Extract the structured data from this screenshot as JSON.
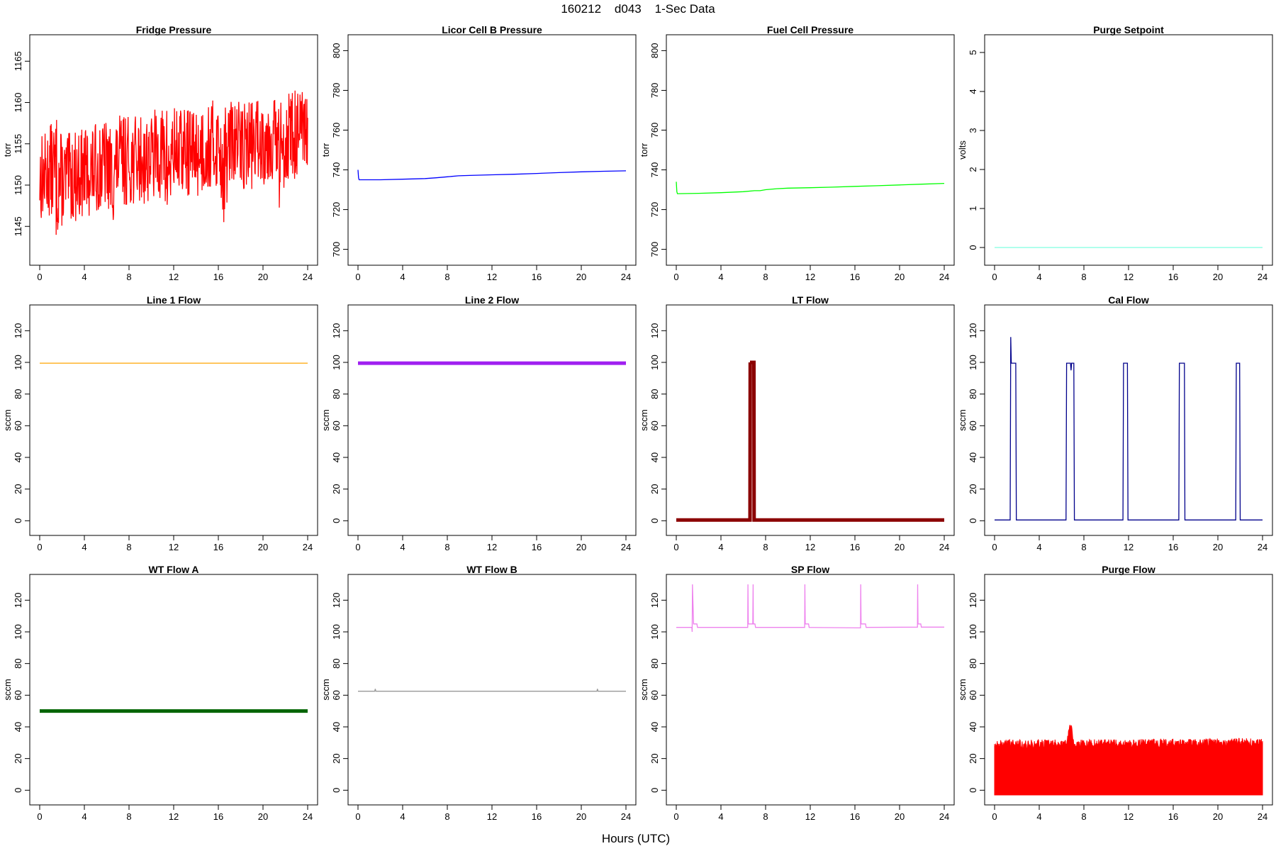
{
  "figure": {
    "title": "160212    d043    1-Sec Data",
    "xlabel": "Hours (UTC)"
  },
  "chart_data": [
    {
      "type": "line",
      "title": "Fridge Pressure",
      "ylabel": "torr",
      "color": "#ff0000",
      "style": "noise",
      "xlim": [
        0,
        24
      ],
      "ylim": [
        1141.5,
        1167
      ],
      "xticks": [
        0,
        4,
        8,
        12,
        16,
        20,
        24
      ],
      "yticks": [
        1145,
        1150,
        1155,
        1160,
        1165
      ],
      "series": [
        {
          "x": [
            0,
            0.5,
            1,
            1.5,
            2,
            3,
            4,
            5,
            6,
            6.5,
            7,
            8,
            9,
            10,
            11,
            11.5,
            12,
            13,
            14,
            15,
            16,
            16.5,
            17,
            18,
            19,
            20,
            21,
            21.5,
            22,
            23,
            24
          ],
          "mid": [
            1151,
            1151,
            1152,
            1151,
            1150.5,
            1151,
            1151.5,
            1152,
            1152.5,
            1151,
            1153,
            1153,
            1153,
            1153.5,
            1154,
            1152,
            1154,
            1154,
            1154,
            1154.5,
            1155,
            1152,
            1155,
            1155,
            1155,
            1155.5,
            1156,
            1153,
            1156,
            1156,
            1156
          ],
          "band": [
            5.5,
            5.5,
            5.5,
            8,
            5.5,
            5.5,
            5.5,
            5.5,
            5.5,
            6,
            5.5,
            5.5,
            5.5,
            5.5,
            5.5,
            8,
            5.5,
            5.5,
            5.5,
            5.5,
            5.5,
            7,
            5.5,
            5.5,
            5.5,
            5.5,
            5.5,
            7,
            5.5,
            5.5,
            5.5
          ]
        }
      ]
    },
    {
      "type": "line",
      "title": "Licor Cell B Pressure",
      "ylabel": "torr",
      "color": "#0000ff",
      "style": "line",
      "xlim": [
        0,
        24
      ],
      "ylim": [
        697,
        803
      ],
      "xticks": [
        0,
        4,
        8,
        12,
        16,
        20,
        24
      ],
      "yticks": [
        700,
        720,
        740,
        760,
        780,
        800
      ],
      "series": [
        {
          "x": [
            0,
            0.05,
            0.1,
            2,
            4,
            6,
            7,
            8,
            9,
            10,
            12,
            14,
            16,
            18,
            20,
            22,
            24
          ],
          "y": [
            740,
            736,
            735,
            735,
            735.3,
            735.6,
            736,
            736.5,
            737,
            737.2,
            737.5,
            737.8,
            738.2,
            738.6,
            739,
            739.3,
            739.5
          ]
        }
      ]
    },
    {
      "type": "line",
      "title": "Fuel Cell Pressure",
      "ylabel": "torr",
      "color": "#00ff00",
      "style": "line",
      "xlim": [
        0,
        24
      ],
      "ylim": [
        697,
        803
      ],
      "xticks": [
        0,
        4,
        8,
        12,
        16,
        20,
        24
      ],
      "yticks": [
        700,
        720,
        740,
        760,
        780,
        800
      ],
      "series": [
        {
          "x": [
            0,
            0.05,
            0.1,
            2,
            4,
            6,
            7,
            7.5,
            8,
            9,
            10,
            12,
            14,
            16,
            18,
            20,
            22,
            24
          ],
          "y": [
            734,
            729,
            728,
            728.2,
            728.5,
            729,
            729.5,
            729.5,
            730,
            730.5,
            730.8,
            731,
            731.3,
            731.7,
            732,
            732.4,
            732.8,
            733.2
          ]
        }
      ]
    },
    {
      "type": "line",
      "title": "Purge Setpoint",
      "ylabel": "volts",
      "color": "#7fffe0",
      "style": "line",
      "xlim": [
        0,
        24
      ],
      "ylim": [
        -0.2,
        5.2
      ],
      "xticks": [
        0,
        4,
        8,
        12,
        16,
        20,
        24
      ],
      "yticks": [
        0,
        1,
        2,
        3,
        4,
        5
      ],
      "series": [
        {
          "x": [
            0,
            24
          ],
          "y": [
            0,
            0
          ]
        }
      ]
    },
    {
      "type": "line",
      "title": "Line 1 Flow",
      "ylabel": "sccm",
      "color": "#ffa500",
      "style": "line",
      "xlim": [
        0,
        24
      ],
      "ylim": [
        -3,
        130
      ],
      "xticks": [
        0,
        4,
        8,
        12,
        16,
        20,
        24
      ],
      "yticks": [
        0,
        20,
        40,
        60,
        80,
        100,
        120
      ],
      "series": [
        {
          "x": [
            0,
            24
          ],
          "y": [
            99.5,
            99.5
          ]
        }
      ]
    },
    {
      "type": "line",
      "title": "Line 2 Flow",
      "ylabel": "sccm",
      "color": "#a020f0",
      "style": "thick",
      "xlim": [
        0,
        24
      ],
      "ylim": [
        -3,
        130
      ],
      "xticks": [
        0,
        4,
        8,
        12,
        16,
        20,
        24
      ],
      "yticks": [
        0,
        20,
        40,
        60,
        80,
        100,
        120
      ],
      "series": [
        {
          "x": [
            0,
            24
          ],
          "y": [
            99.5,
            99.5
          ]
        }
      ]
    },
    {
      "type": "line",
      "title": "LT Flow",
      "ylabel": "sccm",
      "color": "#8b0000",
      "style": "thick",
      "xlim": [
        0,
        24
      ],
      "ylim": [
        -3,
        130
      ],
      "xticks": [
        0,
        4,
        8,
        12,
        16,
        20,
        24
      ],
      "yticks": [
        0,
        20,
        40,
        60,
        80,
        100,
        120
      ],
      "series": [
        {
          "x": [
            0,
            6.6,
            6.62,
            6.6,
            6.95,
            6.97,
            24
          ],
          "y": [
            0.5,
            0.5,
            100,
            100,
            100,
            0.5,
            0.5
          ]
        }
      ]
    },
    {
      "type": "line",
      "title": "Cal Flow",
      "ylabel": "sccm",
      "color": "#00008b",
      "style": "line",
      "xlim": [
        0,
        24
      ],
      "ylim": [
        -3,
        130
      ],
      "xticks": [
        0,
        4,
        8,
        12,
        16,
        20,
        24
      ],
      "yticks": [
        0,
        20,
        40,
        60,
        80,
        100,
        120
      ],
      "series": [
        {
          "x": [
            0,
            1.4,
            1.45,
            1.5,
            1.55,
            1.9,
            1.95,
            6.4,
            6.45,
            6.8,
            6.85,
            6.9,
            7.1,
            7.15,
            11.5,
            11.55,
            11.9,
            11.95,
            16.5,
            16.55,
            17,
            17.05,
            21.6,
            21.65,
            21.95,
            22,
            24
          ],
          "y": [
            0.5,
            0.5,
            116,
            99.5,
            99.5,
            99.5,
            0.5,
            0.5,
            99.5,
            99.5,
            95,
            99.5,
            99.5,
            0.5,
            0.5,
            99.5,
            99.5,
            0.5,
            0.5,
            99.5,
            99.5,
            0.5,
            0.5,
            99.5,
            99.5,
            0.5,
            0.5
          ]
        }
      ]
    },
    {
      "type": "line",
      "title": "WT Flow A",
      "ylabel": "sccm",
      "color": "#006400",
      "style": "thick",
      "xlim": [
        0,
        24
      ],
      "ylim": [
        -3,
        130
      ],
      "xticks": [
        0,
        4,
        8,
        12,
        16,
        20,
        24
      ],
      "yticks": [
        0,
        20,
        40,
        60,
        80,
        100,
        120
      ],
      "series": [
        {
          "x": [
            0,
            24
          ],
          "y": [
            50,
            50
          ]
        }
      ]
    },
    {
      "type": "line",
      "title": "WT Flow B",
      "ylabel": "sccm",
      "color": "#999999",
      "style": "line",
      "xlim": [
        0,
        24
      ],
      "ylim": [
        -3,
        130
      ],
      "xticks": [
        0,
        4,
        8,
        12,
        16,
        20,
        24
      ],
      "yticks": [
        0,
        20,
        40,
        60,
        80,
        100,
        120
      ],
      "series": [
        {
          "x": [
            0,
            1.5,
            1.55,
            1.6,
            12,
            21.4,
            21.45,
            21.5,
            24
          ],
          "y": [
            62.5,
            62.5,
            64,
            62.5,
            62.5,
            62.5,
            64,
            62.5,
            62.5
          ]
        }
      ]
    },
    {
      "type": "line",
      "title": "SP Flow",
      "ylabel": "sccm",
      "color": "#ee82ee",
      "style": "line",
      "xlim": [
        0,
        24
      ],
      "ylim": [
        -3,
        130
      ],
      "xticks": [
        0,
        4,
        8,
        12,
        16,
        20,
        24
      ],
      "yticks": [
        0,
        20,
        40,
        60,
        80,
        100,
        120
      ],
      "series": [
        {
          "x": [
            0,
            1.4,
            1.42,
            1.45,
            1.55,
            1.6,
            1.85,
            1.9,
            6.4,
            6.42,
            6.45,
            6.85,
            6.88,
            6.9,
            7.05,
            7.1,
            11.5,
            11.52,
            11.55,
            11.85,
            11.9,
            16.5,
            16.52,
            16.55,
            16.95,
            17,
            21.6,
            21.62,
            21.65,
            21.9,
            21.95,
            24
          ],
          "y": [
            102.8,
            102.8,
            100,
            130,
            105,
            105,
            105,
            102.8,
            102.8,
            130,
            105,
            105,
            130,
            105,
            105,
            102.8,
            102.8,
            130,
            105,
            105,
            102.8,
            102.5,
            130,
            105,
            105,
            102.8,
            103,
            130,
            105,
            105,
            103,
            103
          ]
        }
      ]
    },
    {
      "type": "line",
      "title": "Purge Flow",
      "ylabel": "sccm",
      "color": "#ff0000",
      "style": "fill",
      "xlim": [
        0,
        24
      ],
      "ylim": [
        -3,
        130
      ],
      "xticks": [
        0,
        4,
        8,
        12,
        16,
        20,
        24
      ],
      "yticks": [
        0,
        20,
        40,
        60,
        80,
        100,
        120
      ],
      "series": [
        {
          "x": [
            0,
            6.5,
            6.7,
            6.9,
            7.1,
            24
          ],
          "top": [
            32,
            32,
            42,
            42,
            32,
            33
          ],
          "bottom": -3
        }
      ]
    }
  ]
}
